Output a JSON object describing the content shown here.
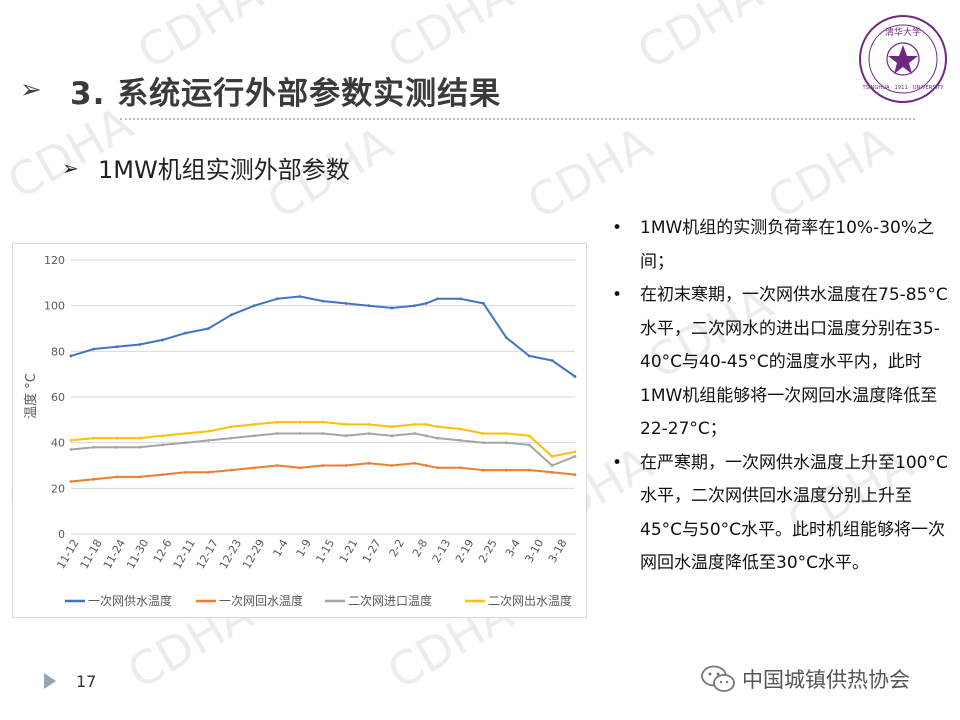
{
  "watermark": "CDHA",
  "title": {
    "arrow_icon": "arrow-right-icon",
    "text": "3. 系统运行外部参数实测结果"
  },
  "subtitle": {
    "arrow_icon": "arrow-right-icon",
    "text": "1MW机组实测外部参数"
  },
  "logo": {
    "icon": "tsinghua-seal-icon",
    "text_top": "清华大学",
    "text_ring": "TSINGHUA · 1911 · UNIVERSITY",
    "color": "#6e2a7f"
  },
  "bullets": [
    {
      "dot": "•",
      "text": "1MW机组的实测负荷率在10%-30%之间；"
    },
    {
      "dot": "•",
      "text": "在初末寒期，一次网供水温度在75-85°C水平，二次网水的进出口温度分别在35-40°C与40-45°C的温度水平内，此时1MW机组能够将一次网回水温度降低至22-27°C；"
    },
    {
      "dot": "•",
      "text": "在严寒期，一次网供水温度上升至100°C水平，二次网供回水温度分别上升至45°C与50°C水平。此时机组能够将一次网回水温度降低至30°C水平。"
    }
  ],
  "footer": {
    "page_number": "17",
    "org_name": "中国城镇供热协会",
    "org_icon": "wechat-icon"
  },
  "chart_data": {
    "type": "line",
    "ylabel": "温度 °C",
    "ylim": [
      0,
      120
    ],
    "yticks": [
      "0",
      "20",
      "40",
      "60",
      "80",
      "100",
      "120"
    ],
    "grid": true,
    "legend_position": "bottom",
    "x_tick_labels": [
      "11-12",
      "11-18",
      "11-24",
      "11-30",
      "12-6",
      "12-11",
      "12-17",
      "12-23",
      "12-29",
      "1-4",
      "1-9",
      "1-15",
      "1-21",
      "1-27",
      "2-2",
      "2-8",
      "2-13",
      "2-19",
      "2-25",
      "3-4",
      "3-10",
      "3-18"
    ],
    "x": [
      0,
      1,
      2,
      3,
      4,
      5,
      6,
      7,
      8,
      9,
      10,
      11,
      12,
      13,
      14,
      15,
      15.5,
      16,
      17,
      18,
      19,
      20,
      21,
      22
    ],
    "series": [
      {
        "name": "一次网供水温度",
        "color": "#4472c4",
        "values": [
          78,
          81,
          82,
          83,
          85,
          88,
          90,
          96,
          100,
          103,
          104,
          102,
          101,
          100,
          99,
          100,
          101,
          103,
          103,
          101,
          86,
          78,
          76,
          69
        ]
      },
      {
        "name": "一次网回水温度",
        "color": "#ed7d31",
        "values": [
          23,
          24,
          25,
          25,
          26,
          27,
          27,
          28,
          29,
          30,
          29,
          30,
          30,
          31,
          30,
          31,
          30,
          29,
          29,
          28,
          28,
          28,
          27,
          26
        ]
      },
      {
        "name": "二次网进口温度",
        "color": "#a5a5a5",
        "values": [
          37,
          38,
          38,
          38,
          39,
          40,
          41,
          42,
          43,
          44,
          44,
          44,
          43,
          44,
          43,
          44,
          43,
          42,
          41,
          40,
          40,
          39,
          30,
          34
        ]
      },
      {
        "name": "二次网出水温度",
        "color": "#ffc000",
        "values": [
          41,
          42,
          42,
          42,
          43,
          44,
          45,
          47,
          48,
          49,
          49,
          49,
          48,
          48,
          47,
          48,
          48,
          47,
          46,
          44,
          44,
          43,
          34,
          36
        ]
      }
    ]
  }
}
